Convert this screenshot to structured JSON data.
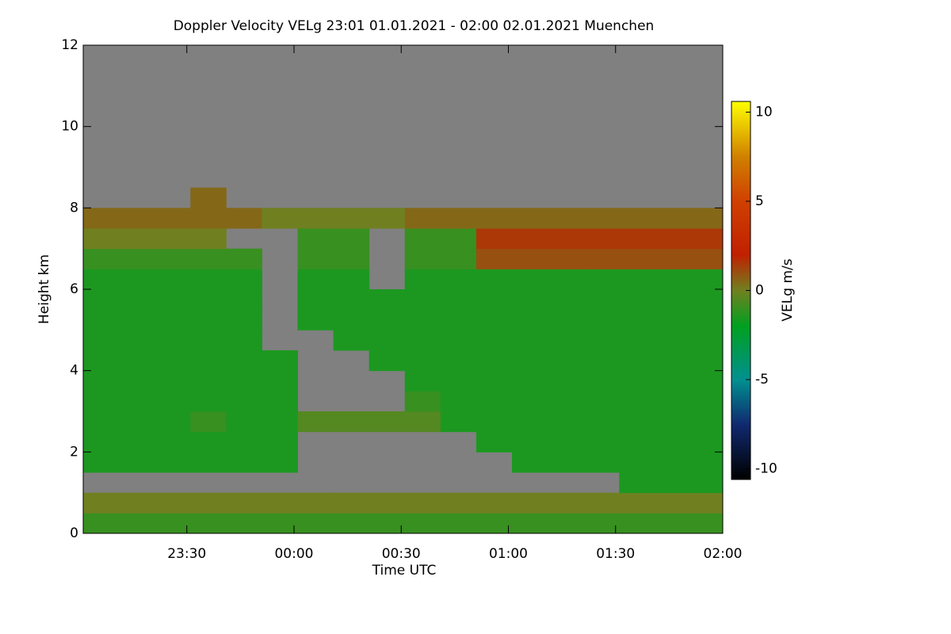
{
  "chart_data": {
    "type": "heatmap",
    "title": "Doppler Velocity VELg   23:01 01.01.2021 - 02:00 02.01.2021 Muenchen",
    "x_label": "Time UTC",
    "y_label": "Height km",
    "colorbar_label": "VELg m/s",
    "xlim": [
      1,
      180
    ],
    "xticks": [
      {
        "value": 30,
        "label": "23:30"
      },
      {
        "value": 60,
        "label": "00:00"
      },
      {
        "value": 90,
        "label": "00:30"
      },
      {
        "value": 120,
        "label": "01:00"
      },
      {
        "value": 150,
        "label": "01:30"
      },
      {
        "value": 180,
        "label": "02:00"
      }
    ],
    "ylim": [
      0,
      12
    ],
    "yticks": [
      0,
      2,
      4,
      6,
      8,
      10,
      12
    ],
    "clim": [
      -10.6,
      10.6
    ],
    "cticks": [
      -10,
      -5,
      0,
      5,
      10
    ],
    "colorscale": [
      [
        -10.6,
        "#000000"
      ],
      [
        -7.5,
        "#102a70"
      ],
      [
        -5,
        "#009090"
      ],
      [
        -2,
        "#00a020"
      ],
      [
        0,
        "#708020"
      ],
      [
        2,
        "#c02000"
      ],
      [
        5,
        "#d04000"
      ],
      [
        7.5,
        "#d08000"
      ],
      [
        10.6,
        "#ffff00"
      ]
    ],
    "background": "#808080",
    "xbins": [
      1,
      11,
      21,
      31,
      41,
      51,
      61,
      71,
      81,
      91,
      101,
      111,
      121,
      131,
      141,
      151,
      161,
      171,
      180
    ],
    "ybins": [
      0,
      0.5,
      1,
      1.5,
      2,
      2.5,
      3,
      3.5,
      4,
      4.5,
      5,
      5.5,
      6,
      6.5,
      7,
      7.5,
      8,
      8.5,
      9,
      9.5,
      10,
      10.5,
      11,
      11.5,
      12
    ],
    "values": [
      [
        -1,
        -1,
        -1,
        -1,
        -1,
        -1,
        -1,
        -1,
        -1,
        -1,
        -1,
        -1,
        -1,
        -1,
        -1,
        -1,
        -1,
        -1
      ],
      [
        0,
        0,
        0,
        0,
        0,
        0,
        0,
        0,
        0,
        0,
        0,
        0,
        0,
        0,
        0,
        0,
        0,
        0
      ],
      [
        null,
        null,
        null,
        null,
        null,
        null,
        null,
        null,
        null,
        null,
        null,
        null,
        null,
        null,
        null,
        -1.5,
        -1.5,
        -1.5
      ],
      [
        -1.5,
        -1.5,
        -1.5,
        -1.5,
        -1.5,
        -1.5,
        null,
        null,
        null,
        null,
        null,
        null,
        -1.5,
        -1.5,
        -1.5,
        -1.5,
        -1.5,
        -1.5
      ],
      [
        -1.5,
        -1.5,
        -1.5,
        -1.5,
        -1.5,
        -1.5,
        null,
        null,
        null,
        null,
        null,
        -1.5,
        -1.5,
        -1.5,
        -1.5,
        -1.5,
        -1.5,
        -1.5
      ],
      [
        -1.5,
        -1.5,
        -1.5,
        -1,
        -1.5,
        -1.5,
        -0.5,
        -0.5,
        -0.5,
        -0.5,
        -1.5,
        -1.5,
        -1.5,
        -1.5,
        -1.5,
        -1.5,
        -1.5,
        -1.5
      ],
      [
        -1.5,
        -1.5,
        -1.5,
        -1.5,
        -1.5,
        -1.5,
        null,
        null,
        null,
        -1,
        -1.5,
        -1.5,
        -1.5,
        -1.5,
        -1.5,
        -1.5,
        -1.5,
        -1.5
      ],
      [
        -1.5,
        -1.5,
        -1.5,
        -1.5,
        -1.5,
        -1.5,
        null,
        null,
        null,
        -1.5,
        -1.5,
        -1.5,
        -1.5,
        -1.5,
        -1.5,
        -1.5,
        -1.5,
        -1.5
      ],
      [
        -1.5,
        -1.5,
        -1.5,
        -1.5,
        -1.5,
        -1.5,
        null,
        null,
        -1.5,
        -1.5,
        -1.5,
        -1.5,
        -1.5,
        -1.5,
        -1.5,
        -1.5,
        -1.5,
        -1.5
      ],
      [
        -1.5,
        -1.5,
        -1.5,
        -1.5,
        -1.5,
        null,
        null,
        -1.5,
        -1.5,
        -1.5,
        -1.5,
        -1.5,
        -1.5,
        -1.5,
        -1.5,
        -1.5,
        -1.5,
        -1.5
      ],
      [
        -1.5,
        -1.5,
        -1.5,
        -1.5,
        -1.5,
        null,
        -1.5,
        -1.5,
        -1.5,
        -1.5,
        -1.5,
        -1.5,
        -1.5,
        -1.5,
        -1.5,
        -1.5,
        -1.5,
        -1.5
      ],
      [
        -1.5,
        -1.5,
        -1.5,
        -1.5,
        -1.5,
        null,
        -1.5,
        -1.5,
        -1.5,
        -1.5,
        -1.5,
        -1.5,
        -1.5,
        -1.5,
        -1.5,
        -1.5,
        -1.5,
        -1.5
      ],
      [
        -1.5,
        -1.5,
        -1.5,
        -1.5,
        -1.5,
        null,
        -1.5,
        -1.5,
        null,
        -1.5,
        -1.5,
        -1.5,
        -1.5,
        -1.5,
        -1.5,
        -1.5,
        -1.5,
        -1.5
      ],
      [
        -1,
        -1,
        -1,
        -1,
        -1,
        null,
        -1,
        -1,
        null,
        -1,
        -1,
        1,
        1,
        1,
        1,
        1,
        1,
        1
      ],
      [
        0,
        0,
        0,
        0,
        null,
        null,
        -1,
        -1,
        null,
        -1,
        -1,
        1.5,
        1.5,
        1.5,
        1.5,
        1.5,
        1.5,
        1.5
      ],
      [
        0.5,
        0.5,
        0.5,
        0.5,
        0.5,
        0,
        0,
        0,
        0,
        0.5,
        0.5,
        0.5,
        0.5,
        0.5,
        0.5,
        0.5,
        0.5,
        0.5
      ],
      [
        null,
        null,
        null,
        0.5,
        null,
        null,
        null,
        null,
        null,
        null,
        null,
        null,
        null,
        null,
        null,
        null,
        null,
        null
      ],
      [
        null,
        null,
        null,
        null,
        null,
        null,
        null,
        null,
        null,
        null,
        null,
        null,
        null,
        null,
        null,
        null,
        null,
        null
      ],
      [
        null,
        null,
        null,
        null,
        null,
        null,
        null,
        null,
        null,
        null,
        null,
        null,
        null,
        null,
        null,
        null,
        null,
        null
      ],
      [
        null,
        null,
        null,
        null,
        null,
        null,
        null,
        null,
        null,
        null,
        null,
        null,
        null,
        null,
        null,
        null,
        null,
        null
      ],
      [
        null,
        null,
        null,
        null,
        null,
        null,
        null,
        null,
        null,
        null,
        null,
        null,
        null,
        null,
        null,
        null,
        null,
        null
      ],
      [
        null,
        null,
        null,
        null,
        null,
        null,
        null,
        null,
        null,
        null,
        null,
        null,
        null,
        null,
        null,
        null,
        null,
        null
      ],
      [
        null,
        null,
        null,
        null,
        null,
        null,
        null,
        null,
        null,
        null,
        null,
        null,
        null,
        null,
        null,
        null,
        null,
        null
      ],
      [
        null,
        null,
        null,
        null,
        null,
        null,
        null,
        null,
        null,
        null,
        null,
        null,
        null,
        null,
        null,
        null,
        null,
        null
      ]
    ]
  }
}
